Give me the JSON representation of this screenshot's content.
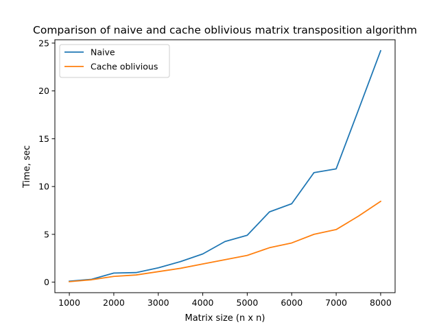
{
  "chart_data": {
    "type": "line",
    "title": "Comparison of naive and cache oblivious matrix transposition algorithm",
    "xlabel": "Matrix size (n x n)",
    "ylabel": "Time, sec",
    "x": [
      1000,
      1500,
      2000,
      2500,
      3000,
      3500,
      4000,
      4500,
      5000,
      5500,
      6000,
      6500,
      7000,
      7500,
      8000
    ],
    "series": [
      {
        "name": "Naive",
        "color": "#1f77b4",
        "values": [
          0.1,
          0.3,
          0.95,
          1.0,
          1.5,
          2.15,
          2.95,
          4.25,
          4.9,
          7.35,
          8.2,
          11.45,
          11.85,
          18.0,
          24.2
        ]
      },
      {
        "name": "Cache oblivious",
        "color": "#ff7f0e",
        "values": [
          0.05,
          0.25,
          0.6,
          0.75,
          1.1,
          1.45,
          1.9,
          2.35,
          2.8,
          3.6,
          4.1,
          5.0,
          5.5,
          6.9,
          8.45
        ]
      }
    ],
    "xlim": [
      675,
      8325
    ],
    "ylim": [
      -1.1,
      25.35
    ],
    "xticks": [
      1000,
      2000,
      3000,
      4000,
      5000,
      6000,
      7000,
      8000
    ],
    "yticks": [
      0,
      5,
      10,
      15,
      20,
      25
    ],
    "xtick_labels": [
      "1000",
      "2000",
      "3000",
      "4000",
      "5000",
      "6000",
      "7000",
      "8000"
    ],
    "ytick_labels": [
      "0",
      "5",
      "10",
      "15",
      "20",
      "25"
    ],
    "grid": false,
    "legend_position": "top-left"
  }
}
